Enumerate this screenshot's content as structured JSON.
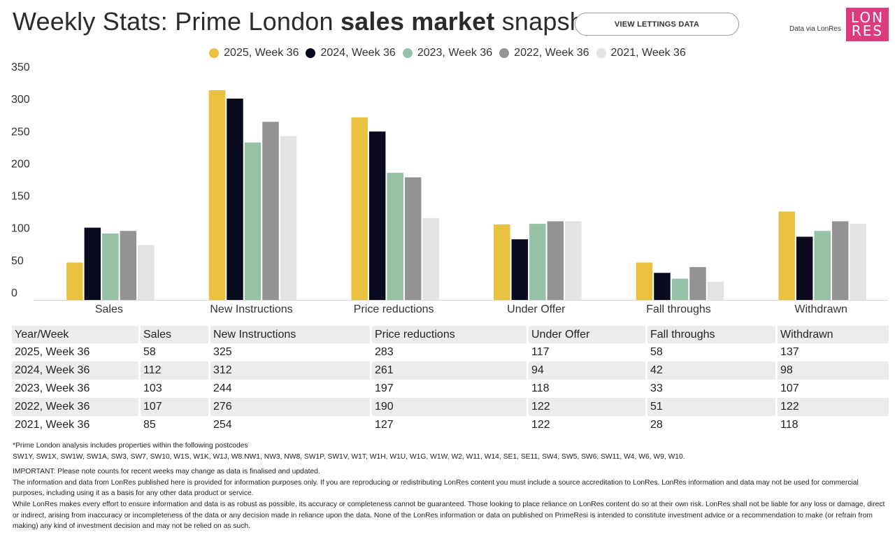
{
  "header": {
    "title_part1": "Weekly Stats: Prime London ",
    "title_bold": "sales market",
    "title_part2": " snapshot",
    "view_button": "VIEW LETTINGS DATA",
    "data_via": "Data via LonRes",
    "logo_line1": "LON",
    "logo_line2": "RES",
    "logo_color": "#dd3b7e"
  },
  "chart_data": {
    "type": "bar",
    "title": "Weekly Stats: Prime London sales market snapshot",
    "xlabel": "",
    "ylabel": "",
    "ylim": [
      0,
      350
    ],
    "yticks": [
      0,
      50,
      100,
      150,
      200,
      250,
      300,
      350
    ],
    "grid": false,
    "legend_position": "top-center",
    "categories": [
      "Sales",
      "New Instructions",
      "Price reductions",
      "Under Offer",
      "Fall throughs",
      "Withdrawn"
    ],
    "series": [
      {
        "name": "2025, Week 36",
        "color": "#e8c140",
        "values": [
          58,
          325,
          283,
          117,
          58,
          137
        ]
      },
      {
        "name": "2024, Week 36",
        "color": "#0b0b1e",
        "values": [
          112,
          312,
          261,
          94,
          42,
          98
        ]
      },
      {
        "name": "2023, Week 36",
        "color": "#96c1a7",
        "values": [
          103,
          244,
          197,
          118,
          33,
          107
        ]
      },
      {
        "name": "2022, Week 36",
        "color": "#939393",
        "values": [
          107,
          276,
          190,
          122,
          51,
          122
        ]
      },
      {
        "name": "2021, Week 36",
        "color": "#e3e3e3",
        "values": [
          85,
          254,
          127,
          122,
          28,
          118
        ]
      }
    ]
  },
  "table": {
    "headers": [
      "Year/Week",
      "Sales",
      "New Instructions",
      "Price reductions",
      "Under Offer",
      "Fall throughs",
      "Withdrawn"
    ],
    "rows": [
      [
        "2025, Week 36",
        "58",
        "325",
        "283",
        "117",
        "58",
        "137"
      ],
      [
        "2024, Week 36",
        "112",
        "312",
        "261",
        "94",
        "42",
        "98"
      ],
      [
        "2023, Week 36",
        "103",
        "244",
        "197",
        "118",
        "33",
        "107"
      ],
      [
        "2022, Week 36",
        "107",
        "276",
        "190",
        "122",
        "51",
        "122"
      ],
      [
        "2021, Week 36",
        "85",
        "254",
        "127",
        "122",
        "28",
        "118"
      ]
    ]
  },
  "notes": {
    "postcodes_intro": "*Prime London analysis includes properties within the following postcodes",
    "postcodes": "SW1Y, SW1X, SW1W, SW1A, SW3, SW7, SW10, W1S, W1K, W1J, W8.NW1, NW3, NW8, SW1P, SW1V, W1T, W1H, W1U, W1G, W1W, W2, W11, W14, SE1, SE11, SW4, SW5, SW6, SW11, W4, W6, W9, W10.",
    "important": "IMPORTANT: Please note counts for recent weeks may change as data is finalised and updated.",
    "disclaimer_1": "The information and data from LonRes published here is provided for information purposes only. If you are reproducing or redistributing LonRes content you must include a source accreditation to LonRes. LonRes information and data may not be used for commercial purposes, including using it as a basis for any other data product or service.",
    "disclaimer_2": "While LonRes makes every effort to ensure information and data is as robust as possible, its accuracy or completeness cannot be guaranteed. Those looking to place reliance on LonRes content do so at their own risk. LonRes shall not be liable for any loss or damage, direct or indirect, arising from inaccuracy or incompleteness of the data or any decision made in reliance upon the data. None of the LonRes information or data on published on PrimeResi is intended to constitute investment advice or a recommendation to make (or refrain from making) any kind of investment decision and may not be relied on as such."
  }
}
